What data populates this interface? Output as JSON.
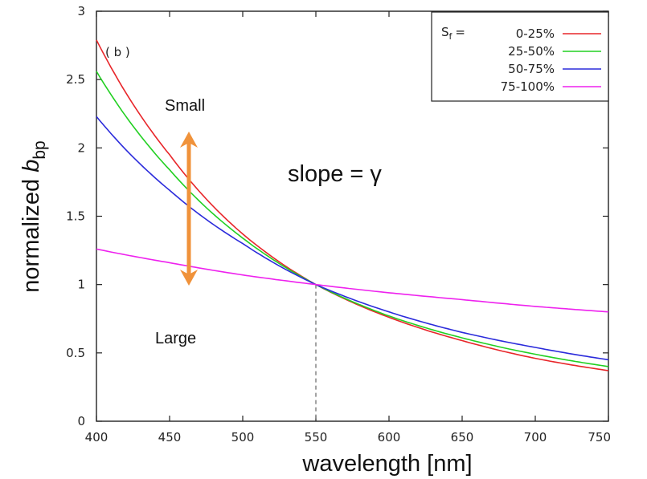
{
  "chart_data": {
    "type": "line",
    "panel_label": "( b )",
    "xlabel": "wavelength [nm]",
    "ylabel_prefix": "normalized ",
    "ylabel_var": "b",
    "ylabel_sub": "bp",
    "xlim": [
      400,
      750
    ],
    "ylim": [
      0,
      3
    ],
    "x_ticks": [
      "400",
      "450",
      "500",
      "550",
      "600",
      "650",
      "700",
      "750"
    ],
    "y_ticks": [
      "0",
      "0.5",
      "1",
      "1.5",
      "2",
      "2.5",
      "3"
    ],
    "grid": false,
    "legend_position": "top-right",
    "legend_prefix_main": "S",
    "legend_prefix_sub": "f",
    "legend_prefix_eq": "=",
    "reference_wavelength": 550,
    "series": [
      {
        "name": "0-25%",
        "color": "#e8262a",
        "x": [
          400,
          450,
          500,
          550,
          600,
          650,
          700,
          750
        ],
        "y": [
          2.79,
          1.95,
          1.37,
          1.0,
          0.76,
          0.59,
          0.46,
          0.37
        ]
      },
      {
        "name": "25-50%",
        "color": "#22d022",
        "x": [
          400,
          450,
          500,
          550,
          600,
          650,
          700,
          750
        ],
        "y": [
          2.56,
          1.84,
          1.34,
          1.0,
          0.77,
          0.61,
          0.49,
          0.4
        ]
      },
      {
        "name": "50-75%",
        "color": "#2b2bdb",
        "x": [
          400,
          450,
          500,
          550,
          600,
          650,
          700,
          750
        ],
        "y": [
          2.23,
          1.69,
          1.3,
          1.0,
          0.8,
          0.65,
          0.54,
          0.45
        ]
      },
      {
        "name": "75-100%",
        "color": "#ee22ee",
        "x": [
          400,
          450,
          500,
          550,
          600,
          650,
          700,
          750
        ],
        "y": [
          1.26,
          1.16,
          1.07,
          1.0,
          0.94,
          0.89,
          0.84,
          0.8
        ]
      }
    ],
    "annotations": {
      "small": "Small",
      "large": "Large",
      "slope": "slope = γ",
      "arrow_color": "#f0923a"
    }
  }
}
